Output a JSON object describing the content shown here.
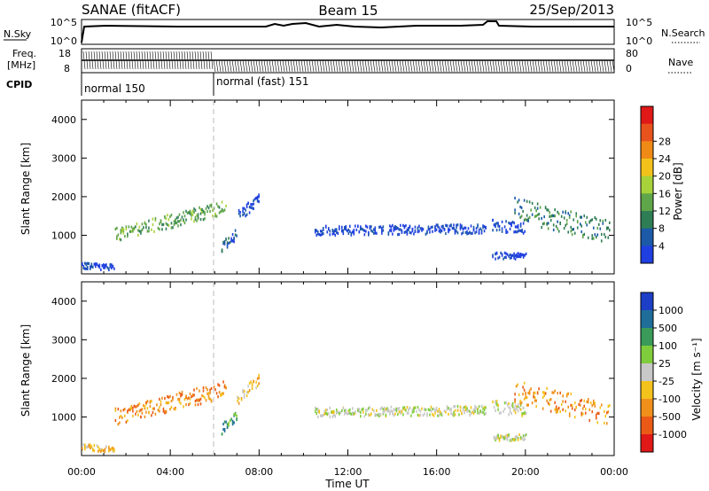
{
  "header": {
    "station": "SANAE (fitACF)",
    "beam": "Beam 15",
    "date": "25/Sep/2013"
  },
  "strip": {
    "nsky_label": "N.Sky",
    "nsearch_label": "N.Search",
    "freq_label_1": "Freq.",
    "freq_label_2": "[MHz]",
    "nave_label": "Nave",
    "cpid_label": "CPID",
    "noise_ticks_left": [
      "10^5",
      "10^0"
    ],
    "noise_ticks_right": [
      "10^5",
      "10^0"
    ],
    "freq_ticks": [
      "18",
      "8"
    ],
    "nave_ticks": [
      "80",
      "0"
    ],
    "modes": [
      {
        "label": "normal 150",
        "start_hour": 0,
        "end_hour": 6
      },
      {
        "label": "normal (fast) 151",
        "start_hour": 6,
        "end_hour": 24
      }
    ]
  },
  "chart_data": [
    {
      "type": "heatmap",
      "panel": "power",
      "xlabel": "",
      "ylabel": "Slant Range [km]",
      "xlim": [
        0,
        24
      ],
      "ylim": [
        0,
        4500
      ],
      "yticks": [
        1000,
        2000,
        3000,
        4000
      ],
      "colorbar": {
        "label": "Power [dB]",
        "ticks": [
          "4",
          "8",
          "12",
          "16",
          "20",
          "24",
          "28"
        ],
        "colors": [
          "#1f3fe0",
          "#1c5aa8",
          "#2f7d55",
          "#5fa54a",
          "#a8d23a",
          "#f2c21b",
          "#f08a17",
          "#e8521d",
          "#e01818"
        ]
      },
      "echo_regions": [
        {
          "x0": 1.5,
          "x1": 6.5,
          "y_start": 1050,
          "y_end": 1750,
          "thickness": 180,
          "color_index": 3
        },
        {
          "x0": 6.3,
          "x1": 7.0,
          "y_start": 700,
          "y_end": 1100,
          "thickness": 140,
          "color_index": 1
        },
        {
          "x0": 7.0,
          "x1": 8.0,
          "y_start": 1500,
          "y_end": 2000,
          "thickness": 150,
          "color_index": 0
        },
        {
          "x0": 10.5,
          "x1": 18.2,
          "y_start": 1150,
          "y_end": 1200,
          "thickness": 120,
          "color_index": 0
        },
        {
          "x0": 18.5,
          "x1": 20.0,
          "y_start": 1300,
          "y_end": 1200,
          "thickness": 160,
          "color_index": 0
        },
        {
          "x0": 19.5,
          "x1": 23.8,
          "y_start": 1700,
          "y_end": 1100,
          "thickness": 300,
          "color_index": 2
        },
        {
          "x0": 18.5,
          "x1": 20.0,
          "y_start": 500,
          "y_end": 500,
          "thickness": 80,
          "color_index": 0
        },
        {
          "x0": 0.0,
          "x1": 1.5,
          "y_start": 250,
          "y_end": 200,
          "thickness": 80,
          "color_index": 0
        }
      ]
    },
    {
      "type": "heatmap",
      "panel": "velocity",
      "xlabel": "Time UT",
      "ylabel": "Slant Range [km]",
      "xlim": [
        0,
        24
      ],
      "ylim": [
        0,
        4500
      ],
      "xticks": [
        "00:00",
        "04:00",
        "08:00",
        "12:00",
        "16:00",
        "20:00",
        "00:00"
      ],
      "yticks": [
        1000,
        2000,
        3000,
        4000
      ],
      "colorbar": {
        "label": "Velocity [m s⁻¹]",
        "ticks": [
          "1000",
          "500",
          "100",
          "25",
          "-25",
          "-100",
          "-500",
          "-1000"
        ],
        "colors": [
          "#1d3fc7",
          "#1f6e9a",
          "#3a9a5a",
          "#7fcc3c",
          "#c8c8c8",
          "#f3c21b",
          "#f0901b",
          "#ea5a16",
          "#e01818"
        ]
      },
      "echo_regions": [
        {
          "x0": 1.5,
          "x1": 6.5,
          "y_start": 1050,
          "y_end": 1750,
          "thickness": 220,
          "color_index": 6
        },
        {
          "x0": 6.3,
          "x1": 7.0,
          "y_start": 700,
          "y_end": 1100,
          "thickness": 140,
          "color_index": 2
        },
        {
          "x0": 7.0,
          "x1": 8.0,
          "y_start": 1500,
          "y_end": 2000,
          "thickness": 150,
          "color_index": 5
        },
        {
          "x0": 10.5,
          "x1": 18.2,
          "y_start": 1150,
          "y_end": 1200,
          "thickness": 120,
          "color_index": 4
        },
        {
          "x0": 18.5,
          "x1": 20.0,
          "y_start": 1300,
          "y_end": 1200,
          "thickness": 160,
          "color_index": 4
        },
        {
          "x0": 19.5,
          "x1": 23.8,
          "y_start": 1700,
          "y_end": 1100,
          "thickness": 300,
          "color_index": 6
        },
        {
          "x0": 18.5,
          "x1": 20.0,
          "y_start": 500,
          "y_end": 500,
          "thickness": 80,
          "color_index": 4
        },
        {
          "x0": 0.0,
          "x1": 1.5,
          "y_start": 250,
          "y_end": 200,
          "thickness": 80,
          "color_index": 5
        }
      ]
    }
  ]
}
